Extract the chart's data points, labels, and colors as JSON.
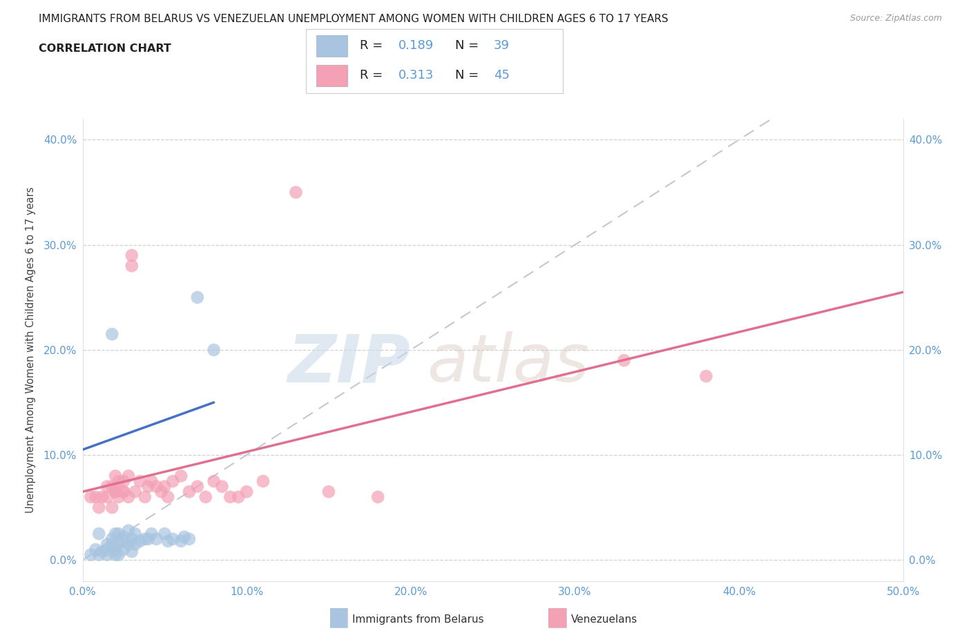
{
  "title1": "IMMIGRANTS FROM BELARUS VS VENEZUELAN UNEMPLOYMENT AMONG WOMEN WITH CHILDREN AGES 6 TO 17 YEARS",
  "title2": "CORRELATION CHART",
  "source": "Source: ZipAtlas.com",
  "ylabel": "Unemployment Among Women with Children Ages 6 to 17 years",
  "xlim": [
    0.0,
    0.5
  ],
  "ylim": [
    -0.02,
    0.42
  ],
  "xticks": [
    0.0,
    0.1,
    0.2,
    0.3,
    0.4,
    0.5
  ],
  "xtick_labels": [
    "0.0%",
    "10.0%",
    "20.0%",
    "30.0%",
    "40.0%",
    "50.0%"
  ],
  "yticks": [
    0.0,
    0.1,
    0.2,
    0.3,
    0.4
  ],
  "ytick_labels": [
    "0.0%",
    "10.0%",
    "20.0%",
    "30.0%",
    "40.0%"
  ],
  "legend1_R": "0.189",
  "legend1_N": "39",
  "legend2_R": "0.313",
  "legend2_N": "45",
  "color_blue": "#a8c4e0",
  "color_pink": "#f4a0b5",
  "line_blue": "#4472c4",
  "line_pink": "#e07090",
  "diagonal_color": "#c0c8d8",
  "blue_scatter_x": [
    0.005,
    0.008,
    0.01,
    0.01,
    0.012,
    0.015,
    0.015,
    0.015,
    0.018,
    0.018,
    0.02,
    0.02,
    0.02,
    0.022,
    0.022,
    0.022,
    0.025,
    0.025,
    0.025,
    0.028,
    0.028,
    0.03,
    0.03,
    0.032,
    0.032,
    0.035,
    0.038,
    0.04,
    0.042,
    0.045,
    0.05,
    0.052,
    0.055,
    0.06,
    0.062,
    0.065,
    0.07,
    0.08,
    0.018
  ],
  "blue_scatter_y": [
    0.005,
    0.01,
    0.025,
    0.005,
    0.008,
    0.005,
    0.01,
    0.015,
    0.015,
    0.02,
    0.005,
    0.01,
    0.025,
    0.015,
    0.025,
    0.005,
    0.01,
    0.018,
    0.022,
    0.015,
    0.028,
    0.008,
    0.02,
    0.015,
    0.025,
    0.018,
    0.02,
    0.02,
    0.025,
    0.02,
    0.025,
    0.018,
    0.02,
    0.018,
    0.022,
    0.02,
    0.25,
    0.2,
    0.215
  ],
  "pink_scatter_x": [
    0.005,
    0.008,
    0.01,
    0.012,
    0.015,
    0.015,
    0.018,
    0.018,
    0.02,
    0.02,
    0.02,
    0.022,
    0.022,
    0.025,
    0.025,
    0.025,
    0.028,
    0.028,
    0.03,
    0.03,
    0.032,
    0.035,
    0.038,
    0.04,
    0.042,
    0.045,
    0.048,
    0.05,
    0.052,
    0.055,
    0.06,
    0.065,
    0.07,
    0.075,
    0.08,
    0.085,
    0.09,
    0.095,
    0.1,
    0.11,
    0.13,
    0.15,
    0.18,
    0.33,
    0.38
  ],
  "pink_scatter_y": [
    0.06,
    0.06,
    0.05,
    0.06,
    0.07,
    0.06,
    0.07,
    0.05,
    0.08,
    0.065,
    0.065,
    0.075,
    0.06,
    0.075,
    0.065,
    0.065,
    0.08,
    0.06,
    0.29,
    0.28,
    0.065,
    0.075,
    0.06,
    0.07,
    0.075,
    0.07,
    0.065,
    0.07,
    0.06,
    0.075,
    0.08,
    0.065,
    0.07,
    0.06,
    0.075,
    0.07,
    0.06,
    0.06,
    0.065,
    0.075,
    0.35,
    0.065,
    0.06,
    0.19,
    0.175
  ],
  "blue_line_x": [
    0.0,
    0.08
  ],
  "blue_line_y": [
    0.105,
    0.15
  ],
  "pink_line_x": [
    0.0,
    0.5
  ],
  "pink_line_y": [
    0.065,
    0.255
  ],
  "diag_line_x": [
    0.0,
    0.42
  ],
  "diag_line_y": [
    0.0,
    0.42
  ]
}
